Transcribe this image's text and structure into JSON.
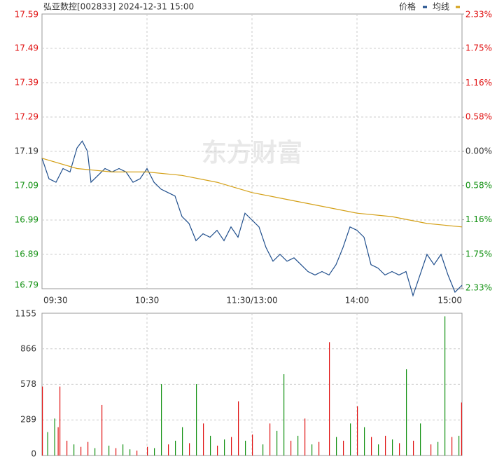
{
  "chart_data": [
    {
      "type": "line",
      "title": "弘亚数控[002833] 2024-12-31 15:00",
      "watermark": "东方财富",
      "xlim": [
        0,
        240
      ],
      "xticks": [
        {
          "value": 0,
          "label": "09:30"
        },
        {
          "value": 60,
          "label": "10:30"
        },
        {
          "value": 120,
          "label": "11:30/13:00"
        },
        {
          "value": 180,
          "label": "14:00"
        },
        {
          "value": 240,
          "label": "15:00"
        }
      ],
      "ylim": [
        16.79,
        17.59
      ],
      "yticks": [
        17.59,
        17.49,
        17.39,
        17.29,
        17.19,
        17.09,
        16.99,
        16.89,
        16.79
      ],
      "y2lim": [
        -2.33,
        2.33
      ],
      "y2ticks": [
        {
          "value": 2.33,
          "label": "2.33%"
        },
        {
          "value": 1.75,
          "label": "1.75%"
        },
        {
          "value": 1.16,
          "label": "1.16%"
        },
        {
          "value": 0.58,
          "label": "0.58%"
        },
        {
          "value": 0,
          "label": "0.00%"
        },
        {
          "value": -0.58,
          "label": "0.58%"
        },
        {
          "value": -1.16,
          "label": "1.16%"
        },
        {
          "value": -1.75,
          "label": "1.75%"
        },
        {
          "value": -2.33,
          "label": "2.33%"
        }
      ],
      "axis_colors": {
        "up": "#e01010",
        "flat": "#333333",
        "down": "#109010"
      },
      "grid": true,
      "series": [
        {
          "name": "价格",
          "color": "#1f4e8c",
          "x": [
            0,
            4,
            8,
            12,
            16,
            20,
            23,
            26,
            28,
            32,
            36,
            40,
            44,
            48,
            52,
            56,
            60,
            64,
            68,
            72,
            76,
            80,
            84,
            88,
            92,
            96,
            100,
            104,
            108,
            112,
            116,
            120,
            124,
            128,
            132,
            136,
            140,
            144,
            148,
            152,
            156,
            160,
            164,
            168,
            172,
            176,
            180,
            184,
            188,
            192,
            196,
            200,
            204,
            208,
            212,
            216,
            220,
            224,
            228,
            232,
            236,
            240
          ],
          "values": [
            17.17,
            17.11,
            17.1,
            17.14,
            17.13,
            17.2,
            17.22,
            17.19,
            17.1,
            17.12,
            17.14,
            17.13,
            17.14,
            17.13,
            17.1,
            17.11,
            17.14,
            17.1,
            17.08,
            17.07,
            17.06,
            17.0,
            16.98,
            16.93,
            16.95,
            16.94,
            16.96,
            16.93,
            16.97,
            16.94,
            17.01,
            16.99,
            16.97,
            16.91,
            16.87,
            16.89,
            16.87,
            16.88,
            16.86,
            16.84,
            16.83,
            16.84,
            16.83,
            16.86,
            16.91,
            16.97,
            16.96,
            16.94,
            16.86,
            16.85,
            16.83,
            16.84,
            16.83,
            16.84,
            16.77,
            16.83,
            16.89,
            16.86,
            16.89,
            16.83,
            16.78,
            16.8
          ]
        },
        {
          "name": "均线",
          "color": "#d4a017",
          "x": [
            0,
            20,
            40,
            60,
            80,
            100,
            120,
            140,
            160,
            180,
            200,
            220,
            240
          ],
          "values": [
            17.17,
            17.14,
            17.13,
            17.13,
            17.12,
            17.1,
            17.07,
            17.05,
            17.03,
            17.01,
            17.0,
            16.98,
            16.97
          ]
        }
      ]
    },
    {
      "type": "bar",
      "xlim": [
        0,
        240
      ],
      "ylim": [
        0,
        1155
      ],
      "yticks": [
        0,
        289,
        578,
        866,
        1155
      ],
      "x": [
        0,
        3,
        7,
        9,
        10,
        14,
        18,
        22,
        26,
        30,
        34,
        38,
        42,
        46,
        50,
        54,
        60,
        64,
        68,
        72,
        76,
        80,
        84,
        88,
        92,
        96,
        100,
        104,
        108,
        112,
        116,
        120,
        126,
        130,
        134,
        138,
        142,
        146,
        150,
        154,
        158,
        164,
        168,
        172,
        176,
        180,
        184,
        188,
        192,
        196,
        200,
        204,
        208,
        212,
        216,
        222,
        226,
        230,
        234,
        238,
        240
      ],
      "values": [
        560,
        190,
        300,
        230,
        560,
        120,
        90,
        70,
        110,
        60,
        410,
        80,
        60,
        90,
        50,
        40,
        70,
        60,
        580,
        90,
        120,
        230,
        100,
        580,
        260,
        160,
        80,
        130,
        150,
        440,
        120,
        170,
        90,
        260,
        200,
        660,
        120,
        160,
        300,
        90,
        110,
        920,
        150,
        120,
        260,
        400,
        230,
        150,
        90,
        160,
        130,
        100,
        700,
        120,
        260,
        90,
        110,
        1130,
        150,
        160,
        430
      ],
      "colors": [
        "#e01010",
        "#109010",
        "#109010",
        "#e01010",
        "#e01010",
        "#e01010",
        "#109010",
        "#e01010",
        "#e01010",
        "#109010",
        "#e01010",
        "#109010",
        "#e01010",
        "#109010",
        "#109010",
        "#e01010",
        "#e01010",
        "#109010",
        "#109010",
        "#e01010",
        "#109010",
        "#109010",
        "#e01010",
        "#109010",
        "#e01010",
        "#109010",
        "#e01010",
        "#109010",
        "#e01010",
        "#e01010",
        "#109010",
        "#e01010",
        "#109010",
        "#e01010",
        "#109010",
        "#109010",
        "#e01010",
        "#109010",
        "#e01010",
        "#109010",
        "#e01010",
        "#e01010",
        "#109010",
        "#e01010",
        "#109010",
        "#e01010",
        "#109010",
        "#e01010",
        "#109010",
        "#e01010",
        "#109010",
        "#e01010",
        "#109010",
        "#e01010",
        "#109010",
        "#e01010",
        "#109010",
        "#109010",
        "#e01010",
        "#109010",
        "#e01010"
      ]
    }
  ]
}
